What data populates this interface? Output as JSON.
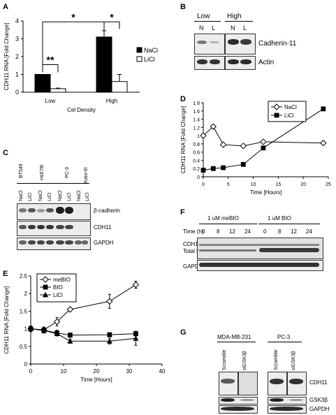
{
  "panels": {
    "a": "A",
    "b": "B",
    "c": "C",
    "d": "D",
    "e": "E",
    "f": "F",
    "g": "G"
  },
  "chart_data": [
    {
      "id": "A",
      "type": "bar",
      "categories": [
        "Low",
        "High"
      ],
      "series": [
        {
          "name": "NaCl",
          "values": [
            1.0,
            3.1
          ],
          "errors": [
            0.0,
            0.35
          ]
        },
        {
          "name": "LiCl",
          "values": [
            0.2,
            0.6
          ],
          "errors": [
            0.03,
            0.4
          ]
        }
      ],
      "xlabel": "Cel Density",
      "ylabel": "CDH11 RNA [Fold Change]",
      "ylim": [
        0,
        4
      ],
      "yticks": [
        "0",
        "1",
        "2",
        "3",
        "4"
      ],
      "significance": [
        "**",
        "*",
        "*"
      ],
      "legend": "right"
    },
    {
      "id": "D",
      "type": "line",
      "series": [
        {
          "name": "NaCl",
          "x": [
            0,
            2,
            4,
            8,
            12,
            24
          ],
          "y": [
            1.0,
            1.22,
            0.78,
            0.75,
            0.85,
            0.82
          ]
        },
        {
          "name": "LiCl",
          "x": [
            0,
            2,
            4,
            8,
            12,
            24
          ],
          "y": [
            0.16,
            0.2,
            0.22,
            0.3,
            0.7,
            1.65
          ]
        }
      ],
      "xlabel": "Time [Hours]",
      "ylabel": "CDH11 RNA [Fold Change]",
      "xlim": [
        0,
        25
      ],
      "ylim": [
        0,
        1.8
      ],
      "xticks": [
        "0",
        "5",
        "10",
        "15",
        "20",
        "25"
      ],
      "yticks": [
        "0",
        "0.2",
        "0.4",
        "0.6",
        "0.8",
        "1",
        "1.2",
        "1.4",
        "1.6",
        "1.8"
      ],
      "legend": "top-right"
    },
    {
      "id": "E",
      "type": "line",
      "series": [
        {
          "name": "meBIO",
          "x": [
            0,
            4,
            8,
            12,
            24,
            32
          ],
          "y": [
            1.0,
            0.97,
            1.2,
            1.55,
            1.78,
            2.25
          ],
          "errors": [
            0.08,
            0.08,
            0.12,
            0.05,
            0.2,
            0.1
          ]
        },
        {
          "name": "BIO",
          "x": [
            0,
            4,
            8,
            12,
            24,
            32
          ],
          "y": [
            1.0,
            0.96,
            0.88,
            0.82,
            0.83,
            0.86
          ],
          "errors": [
            0.08,
            0.08,
            0.08,
            0.06,
            0.06,
            0.06
          ]
        },
        {
          "name": "LiCl",
          "x": [
            0,
            4,
            8,
            12,
            24,
            32
          ],
          "y": [
            1.0,
            0.95,
            0.86,
            0.65,
            0.65,
            0.73
          ],
          "errors": [
            0.06,
            0.06,
            0.06,
            0.06,
            0.08,
            0.2
          ]
        }
      ],
      "xlabel": "Time [Hours]",
      "ylabel": "CDH11 RNA [Fold Change]",
      "xlim": [
        0,
        40
      ],
      "ylim": [
        0,
        2.5
      ],
      "xticks": [
        "0",
        "10",
        "20",
        "30",
        "40"
      ],
      "yticks": [
        "0",
        "0.5",
        "1",
        "1.5",
        "2",
        "2.5"
      ],
      "legend": "top-left"
    }
  ],
  "blot_b": {
    "groups": [
      "Low",
      "High"
    ],
    "lanes": [
      "N",
      "L",
      "N",
      "L"
    ],
    "rows": [
      "Cadherin-11",
      "Actin"
    ]
  },
  "blot_c": {
    "cell_lines": [
      "BT549",
      "Hs578t",
      "PC-3",
      "Kato-III"
    ],
    "lanes": [
      "NaCl",
      "LiCl",
      "NaCl",
      "LiCl",
      "NaCl",
      "LiCl",
      "NaCl",
      "LiCl"
    ],
    "rows": [
      "β-cadherin",
      "CDH11",
      "GAPDH"
    ]
  },
  "blot_f": {
    "groups": [
      "1 uM meBIO",
      "1 uM BIO"
    ],
    "time_label": "Time (h)",
    "times": [
      "0",
      "8",
      "12",
      "24",
      "0",
      "8",
      "12",
      "24"
    ],
    "rows": [
      "CDH11",
      "Total b-cat",
      "GAPDH"
    ]
  },
  "blot_g": {
    "cell_lines": [
      "MDA-MB-231",
      "PC-3"
    ],
    "lanes": [
      "Scramble",
      "siGSK3β",
      "Scramble",
      "siGSK3β"
    ],
    "rows": [
      "CDH11",
      "GSK3β",
      "GAPDH"
    ]
  }
}
